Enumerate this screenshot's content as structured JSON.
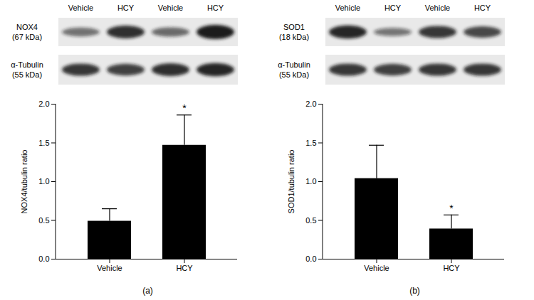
{
  "chart_data": [
    {
      "type": "bar",
      "caption": "(a)",
      "categories": [
        "Vehicle",
        "HCY"
      ],
      "values": [
        0.49,
        1.47
      ],
      "errors": [
        0.16,
        0.39
      ],
      "color": "#000000",
      "ylabel": "NOX4/tubulin ratio",
      "ylim": [
        0,
        2
      ],
      "yticks": [
        {
          "value": 0,
          "label": "0.0"
        },
        {
          "value": 0.5,
          "label": "0.5"
        },
        {
          "value": 1,
          "label": "1.0"
        },
        {
          "value": 1.5,
          "label": "1.5"
        },
        {
          "value": 2,
          "label": "2.0"
        }
      ],
      "annotations": [
        {
          "category": "HCY",
          "text": "*"
        }
      ],
      "blot": {
        "lanes": [
          "Vehicle",
          "HCY",
          "Vehicle",
          "HCY"
        ],
        "rows": [
          {
            "label": "NOX4",
            "sublabel": "(67 kDa)",
            "band_density": [
              0.45,
              0.85,
              0.5,
              1.0
            ]
          },
          {
            "label": "α-Tubulin",
            "sublabel": "(55 kDa)",
            "band_density": [
              0.8,
              0.75,
              0.85,
              0.9
            ]
          }
        ]
      }
    },
    {
      "type": "bar",
      "caption": "(b)",
      "categories": [
        "Vehicle",
        "HCY"
      ],
      "values": [
        1.04,
        0.39
      ],
      "errors": [
        0.43,
        0.18
      ],
      "color": "#000000",
      "ylabel": "SOD1/tubulin ratio",
      "ylim": [
        0,
        2
      ],
      "yticks": [
        {
          "value": 0,
          "label": "0.0"
        },
        {
          "value": 0.5,
          "label": "0.5"
        },
        {
          "value": 1,
          "label": "1.0"
        },
        {
          "value": 1.5,
          "label": "1.5"
        },
        {
          "value": 2,
          "label": "2.0"
        }
      ],
      "annotations": [
        {
          "category": "HCY",
          "text": "*"
        }
      ],
      "blot": {
        "lanes": [
          "Vehicle",
          "HCY",
          "Vehicle",
          "HCY"
        ],
        "rows": [
          {
            "label": "SOD1",
            "sublabel": "(18 kDa)",
            "band_density": [
              0.9,
              0.4,
              0.8,
              0.7
            ]
          },
          {
            "label": "α-Tubulin",
            "sublabel": "(55 kDa)",
            "band_density": [
              0.8,
              0.75,
              0.8,
              0.8
            ]
          }
        ]
      }
    }
  ]
}
